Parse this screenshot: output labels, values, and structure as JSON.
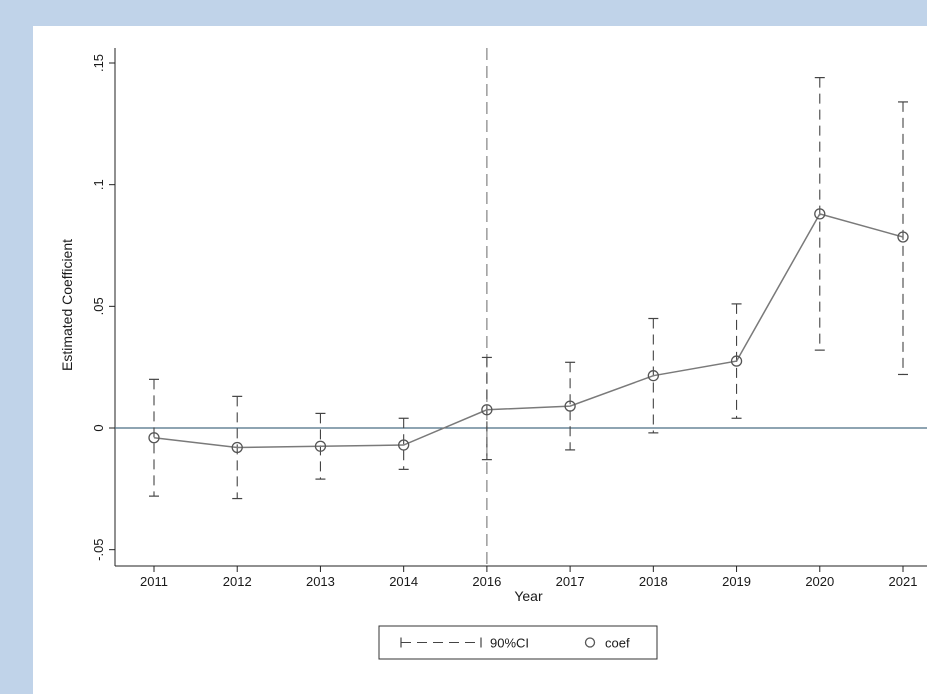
{
  "chart_data": {
    "type": "line",
    "title": "",
    "xlabel": "Year",
    "ylabel": "Estimated Coefficient",
    "categories": [
      "2011",
      "2012",
      "2013",
      "2014",
      "2016",
      "2017",
      "2018",
      "2019",
      "2020",
      "2021"
    ],
    "y_ticks": [
      ".15",
      ".1",
      ".05",
      "0",
      "-.05"
    ],
    "y_tick_values": [
      0.15,
      0.1,
      0.05,
      0,
      -0.05
    ],
    "ylim": [
      -0.055,
      0.155
    ],
    "reference_line_y": 0,
    "event_line_at": "2016",
    "series": [
      {
        "name": "coef",
        "values": [
          -0.004,
          -0.008,
          -0.0075,
          -0.007,
          0.0075,
          0.009,
          0.0215,
          0.0275,
          0.088,
          0.0785
        ]
      },
      {
        "name": "90%CI",
        "lower": [
          -0.028,
          -0.029,
          -0.021,
          -0.017,
          -0.013,
          -0.009,
          -0.002,
          0.004,
          0.032,
          0.022
        ],
        "upper": [
          0.02,
          0.013,
          0.006,
          0.004,
          0.029,
          0.027,
          0.045,
          0.051,
          0.144,
          0.134
        ]
      }
    ],
    "legend": {
      "position": "bottom",
      "entries": [
        "90%CI",
        "coef"
      ]
    },
    "grid": false,
    "colors": {
      "line": "#7a7a7a",
      "ci": "#444444",
      "zero_line": "#4a6d84",
      "axis": "#222222"
    }
  }
}
